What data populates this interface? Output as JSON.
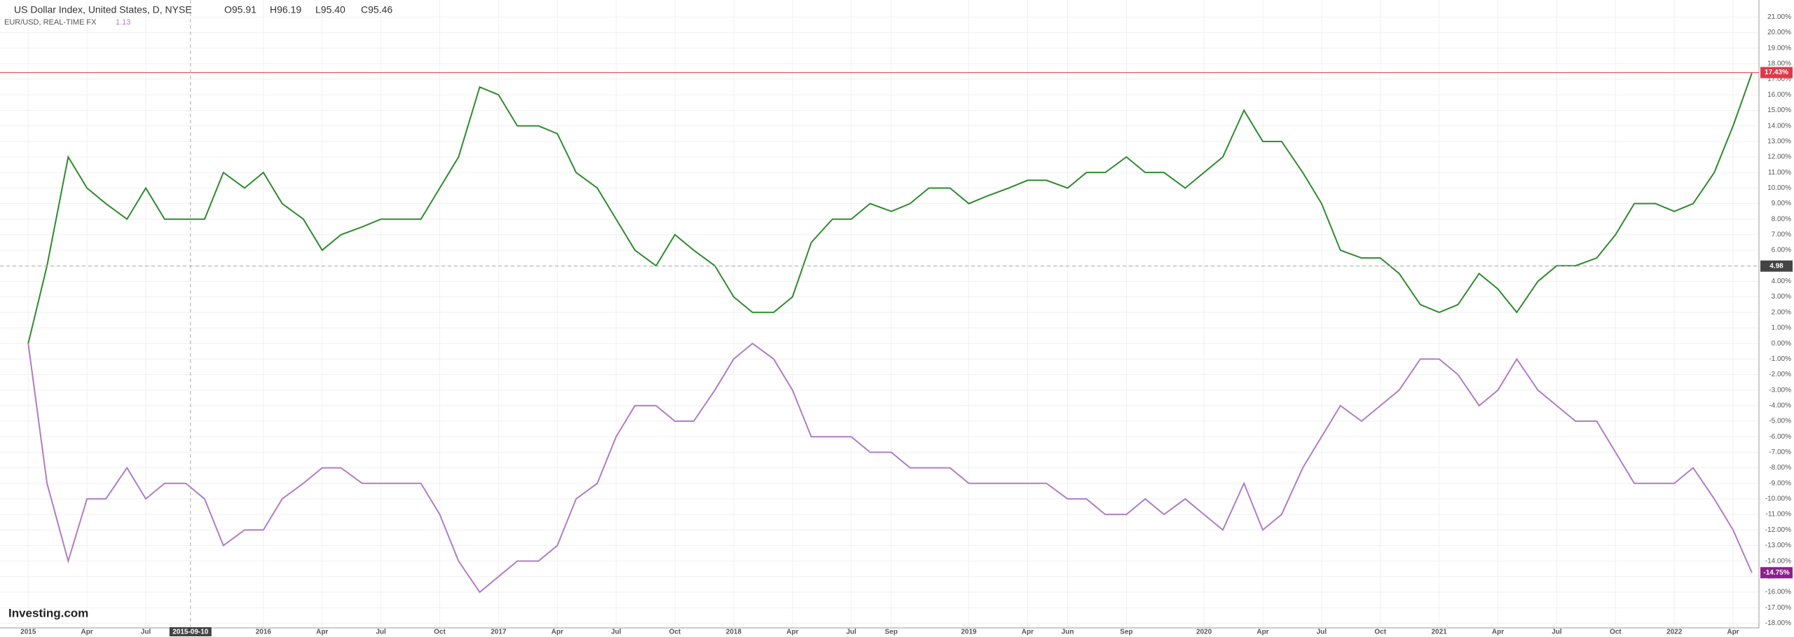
{
  "chart_data": {
    "type": "line",
    "title": "US Dollar Index, United States, D, NYSE",
    "ohlc": [
      "O95.91",
      "H96.19",
      "L95.40",
      "C95.46"
    ],
    "subtitle": "EUR/USD, REAL-TIME FX",
    "subtitle_value": "1.13",
    "logo": "Investing.com",
    "x": [
      2015.0,
      2015.08,
      2015.17,
      2015.25,
      2015.33,
      2015.42,
      2015.5,
      2015.58,
      2015.67,
      2015.75,
      2015.83,
      2015.92,
      2016.0,
      2016.08,
      2016.17,
      2016.25,
      2016.33,
      2016.42,
      2016.5,
      2016.58,
      2016.67,
      2016.75,
      2016.83,
      2016.92,
      2017.0,
      2017.08,
      2017.17,
      2017.25,
      2017.33,
      2017.42,
      2017.5,
      2017.58,
      2017.67,
      2017.75,
      2017.83,
      2017.92,
      2018.0,
      2018.08,
      2018.17,
      2018.25,
      2018.33,
      2018.42,
      2018.5,
      2018.58,
      2018.67,
      2018.75,
      2018.83,
      2018.92,
      2019.0,
      2019.08,
      2019.17,
      2019.25,
      2019.33,
      2019.42,
      2019.5,
      2019.58,
      2019.67,
      2019.75,
      2019.83,
      2019.92,
      2020.0,
      2020.08,
      2020.17,
      2020.25,
      2020.33,
      2020.42,
      2020.5,
      2020.58,
      2020.67,
      2020.75,
      2020.83,
      2020.92,
      2021.0,
      2021.08,
      2021.17,
      2021.25,
      2021.33,
      2021.42,
      2021.5,
      2021.58,
      2021.67,
      2021.75,
      2021.83,
      2021.92,
      2022.0,
      2022.08,
      2022.17,
      2022.25,
      2022.33
    ],
    "series": [
      {
        "name": "US Dollar Index",
        "color": "#2e8b2e",
        "values": [
          0,
          5,
          12,
          10,
          9,
          8,
          10,
          8,
          8,
          8,
          11,
          10,
          11,
          9,
          8,
          6,
          7,
          7.5,
          8,
          8,
          8,
          10,
          12,
          16.5,
          16,
          14,
          14,
          13.5,
          11,
          10,
          8,
          6,
          5,
          7,
          6,
          5,
          3,
          2,
          2,
          3,
          6.5,
          8,
          8,
          9,
          8.5,
          9,
          10,
          10,
          9,
          9.5,
          10,
          10.5,
          10.5,
          10,
          11,
          11,
          12,
          11,
          11,
          10,
          11,
          12,
          15,
          13,
          13,
          11,
          9,
          6,
          5.5,
          5.5,
          4.5,
          2.5,
          2,
          2.5,
          4.5,
          3.5,
          2,
          4,
          5,
          5,
          5.5,
          7,
          9,
          9,
          8.5,
          9,
          11,
          14,
          17.4
        ]
      },
      {
        "name": "EUR/USD",
        "color": "#b07cc6",
        "values": [
          0,
          -9,
          -14,
          -10,
          -10,
          -8,
          -10,
          -9,
          -9,
          -10,
          -13,
          -12,
          -12,
          -10,
          -9,
          -8,
          -8,
          -9,
          -9,
          -9,
          -9,
          -11,
          -14,
          -16,
          -15,
          -14,
          -14,
          -13,
          -10,
          -9,
          -6,
          -4,
          -4,
          -5,
          -5,
          -3,
          -1,
          0,
          -1,
          -3,
          -6,
          -6,
          -6,
          -7,
          -7,
          -8,
          -8,
          -8,
          -9,
          -9,
          -9,
          -9,
          -9,
          -10,
          -10,
          -11,
          -11,
          -10,
          -11,
          -10,
          -11,
          -12,
          -9,
          -12,
          -11,
          -8,
          -6,
          -4,
          -5,
          -4,
          -3,
          -1,
          -1,
          -2,
          -4,
          -3,
          -1,
          -3,
          -4,
          -5,
          -5,
          -7,
          -9,
          -9,
          -9,
          -8,
          -10,
          -12,
          -14.75
        ]
      }
    ],
    "xlim": [
      2014.88,
      2022.36
    ],
    "xticks": [
      2015,
      {
        "value": 2015.25,
        "label": "Apr"
      },
      {
        "value": 2015.5,
        "label": "Jul"
      },
      2016,
      {
        "value": 2016.25,
        "label": "Apr"
      },
      {
        "value": 2016.5,
        "label": "Jul"
      },
      {
        "value": 2016.75,
        "label": "Oct"
      },
      2017,
      {
        "value": 2017.25,
        "label": "Apr"
      },
      {
        "value": 2017.5,
        "label": "Jul"
      },
      {
        "value": 2017.75,
        "label": "Oct"
      },
      2018,
      {
        "value": 2018.25,
        "label": "Apr"
      },
      {
        "value": 2018.5,
        "label": "Jul"
      },
      {
        "value": 2018.67,
        "label": "Sep"
      },
      2019,
      {
        "value": 2019.25,
        "label": "Apr"
      },
      {
        "value": 2019.42,
        "label": "Jun"
      },
      {
        "value": 2019.67,
        "label": "Sep"
      },
      2020,
      {
        "value": 2020.25,
        "label": "Apr"
      },
      {
        "value": 2020.5,
        "label": "Jul"
      },
      {
        "value": 2020.75,
        "label": "Oct"
      },
      2021,
      {
        "value": 2021.25,
        "label": "Apr"
      },
      {
        "value": 2021.5,
        "label": "Jul"
      },
      {
        "value": 2021.75,
        "label": "Oct"
      },
      2022,
      {
        "value": 2022.25,
        "label": "Apr"
      }
    ],
    "ylim": [
      -18.3,
      22.1
    ],
    "yticks": [
      {
        "value": 21,
        "label": "21.00%"
      },
      {
        "value": 20,
        "label": "20.00%"
      },
      {
        "value": 19,
        "label": "19.00%"
      },
      {
        "value": 18,
        "label": "18.00%"
      },
      {
        "value": 17,
        "label": "17.00%"
      },
      {
        "value": 16,
        "label": "16.00%"
      },
      {
        "value": 15,
        "label": "15.00%"
      },
      {
        "value": 14,
        "label": "14.00%"
      },
      {
        "value": 13,
        "label": "13.00%"
      },
      {
        "value": 12,
        "label": "12.00%"
      },
      {
        "value": 11,
        "label": "11.00%"
      },
      {
        "value": 10,
        "label": "10.00%"
      },
      {
        "value": 9,
        "label": "9.00%"
      },
      {
        "value": 8,
        "label": "8.00%"
      },
      {
        "value": 7,
        "label": "7.00%"
      },
      {
        "value": 6,
        "label": "6.00%"
      },
      {
        "value": 5,
        "label": "5.00%"
      },
      {
        "value": 4,
        "label": "4.00%"
      },
      {
        "value": 3,
        "label": "3.00%"
      },
      {
        "value": 2,
        "label": "2.00%"
      },
      {
        "value": 1,
        "label": "1.00%"
      },
      {
        "value": 0,
        "label": "0.00%"
      },
      {
        "value": -1,
        "label": "-1.00%"
      },
      {
        "value": -2,
        "label": "-2.00%"
      },
      {
        "value": -3,
        "label": "-3.00%"
      },
      {
        "value": -4,
        "label": "-4.00%"
      },
      {
        "value": -5,
        "label": "-5.00%"
      },
      {
        "value": -6,
        "label": "-6.00%"
      },
      {
        "value": -7,
        "label": "-7.00%"
      },
      {
        "value": -8,
        "label": "-8.00%"
      },
      {
        "value": -9,
        "label": "-9.00%"
      },
      {
        "value": -10,
        "label": "-10.00%"
      },
      {
        "value": -11,
        "label": "-11.00%"
      },
      {
        "value": -12,
        "label": "-12.00%"
      },
      {
        "value": -13,
        "label": "-13.00%"
      },
      {
        "value": -14,
        "label": "-14.00%"
      },
      {
        "value": -15,
        "label": "-15.00%"
      },
      {
        "value": -16,
        "label": "-16.00%"
      },
      {
        "value": -17,
        "label": "-17.00%"
      },
      {
        "value": -18,
        "label": "-18.00%"
      }
    ],
    "grid": true,
    "price_line": {
      "value": 17.43,
      "label": "17.43%",
      "color": "#e0394a"
    },
    "crosshair_y": 4.98,
    "crosshair_x": {
      "value": 2015.69,
      "label": "2015-09-10"
    },
    "last_value": {
      "value": -14.75,
      "label": "-14.75%",
      "color": "#8e1f8e"
    }
  }
}
